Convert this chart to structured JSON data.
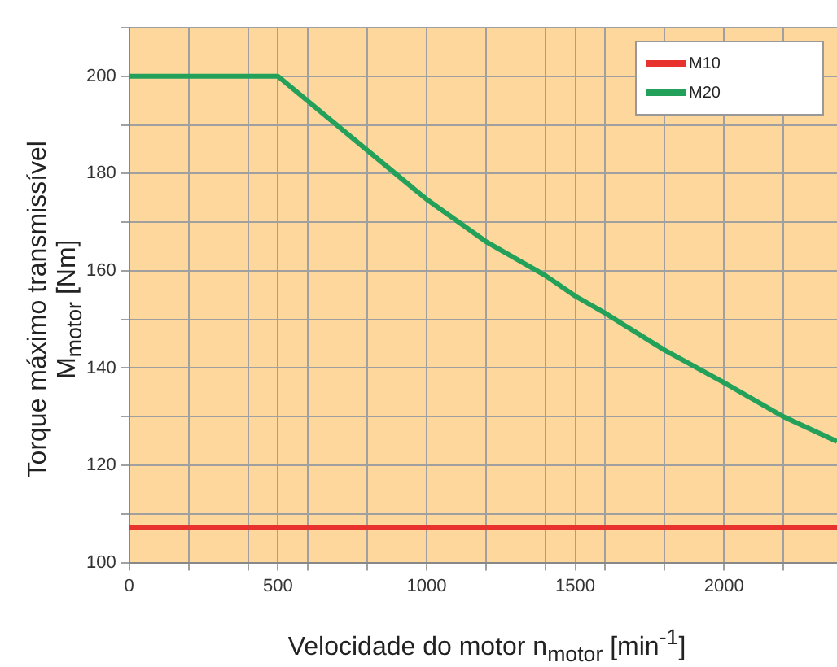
{
  "chart_data": {
    "type": "line",
    "xlabel": "Velocidade do motor n$_{motor}$ [min$^{-1}$]",
    "ylabel": "Torque máximo transmissível\nM$_{motor}$ [Nm]",
    "xlim": [
      0,
      2380
    ],
    "ylim": [
      100,
      210
    ],
    "xticks": [
      0,
      {
        "value": 200,
        "label": null
      },
      {
        "value": 400,
        "label": null
      },
      500,
      {
        "value": 600,
        "label": null
      },
      {
        "value": 800,
        "label": null
      },
      1000,
      {
        "value": 1200,
        "label": null
      },
      {
        "value": 1400,
        "label": null
      },
      1500,
      {
        "value": 1600,
        "label": null
      },
      {
        "value": 1800,
        "label": null
      },
      2000,
      {
        "value": 2200,
        "label": null
      }
    ],
    "yticks": [
      100,
      {
        "value": 110,
        "label": null
      },
      120,
      {
        "value": 130,
        "label": null
      },
      140,
      {
        "value": 150,
        "label": null
      },
      160,
      {
        "value": 170,
        "label": null
      },
      180,
      {
        "value": 190,
        "label": null
      },
      200,
      {
        "value": 210,
        "label": null
      }
    ],
    "grid": true,
    "legend": "top right",
    "marker": "none",
    "line_style": "solid",
    "series": [
      {
        "name": "M10",
        "color": "#e8322d",
        "x": [
          0,
          2380
        ],
        "values": [
          107.3,
          107.3
        ]
      },
      {
        "name": "M20",
        "color": "#23a15a",
        "x": [
          0,
          500,
          800,
          1000,
          1200,
          1400,
          1500,
          1600,
          1800,
          2000,
          2200,
          2380
        ],
        "values": [
          200,
          200,
          184.8,
          174.7,
          166,
          159,
          154.8,
          151.3,
          143.7,
          137,
          130,
          124.9
        ]
      }
    ]
  }
}
